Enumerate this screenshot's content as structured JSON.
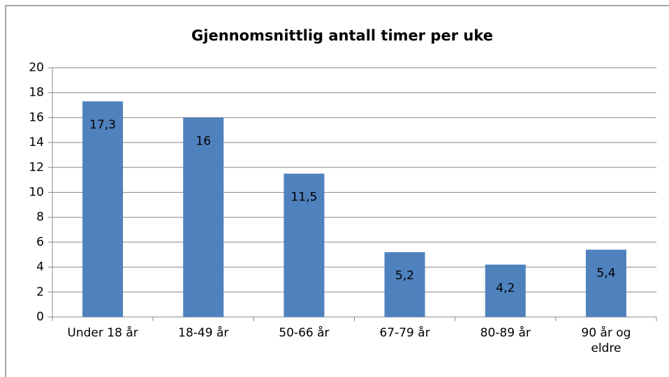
{
  "chart_data": {
    "type": "bar",
    "title": "Gjennomsnittlig antall timer per uke",
    "categories": [
      "Under 18 år",
      "18-49 år",
      "50-66 år",
      "67-79 år",
      "80-89 år",
      "90 år og eldre"
    ],
    "values": [
      17.3,
      16,
      11.5,
      5.2,
      4.2,
      5.4
    ],
    "value_labels": [
      "17,3",
      "16",
      "11,5",
      "5,2",
      "4,2",
      "5,4"
    ],
    "color": "#4f81bd",
    "ylim": [
      0,
      20
    ],
    "yticks": [
      0,
      2,
      4,
      6,
      8,
      10,
      12,
      14,
      16,
      18,
      20
    ],
    "grid": true
  }
}
